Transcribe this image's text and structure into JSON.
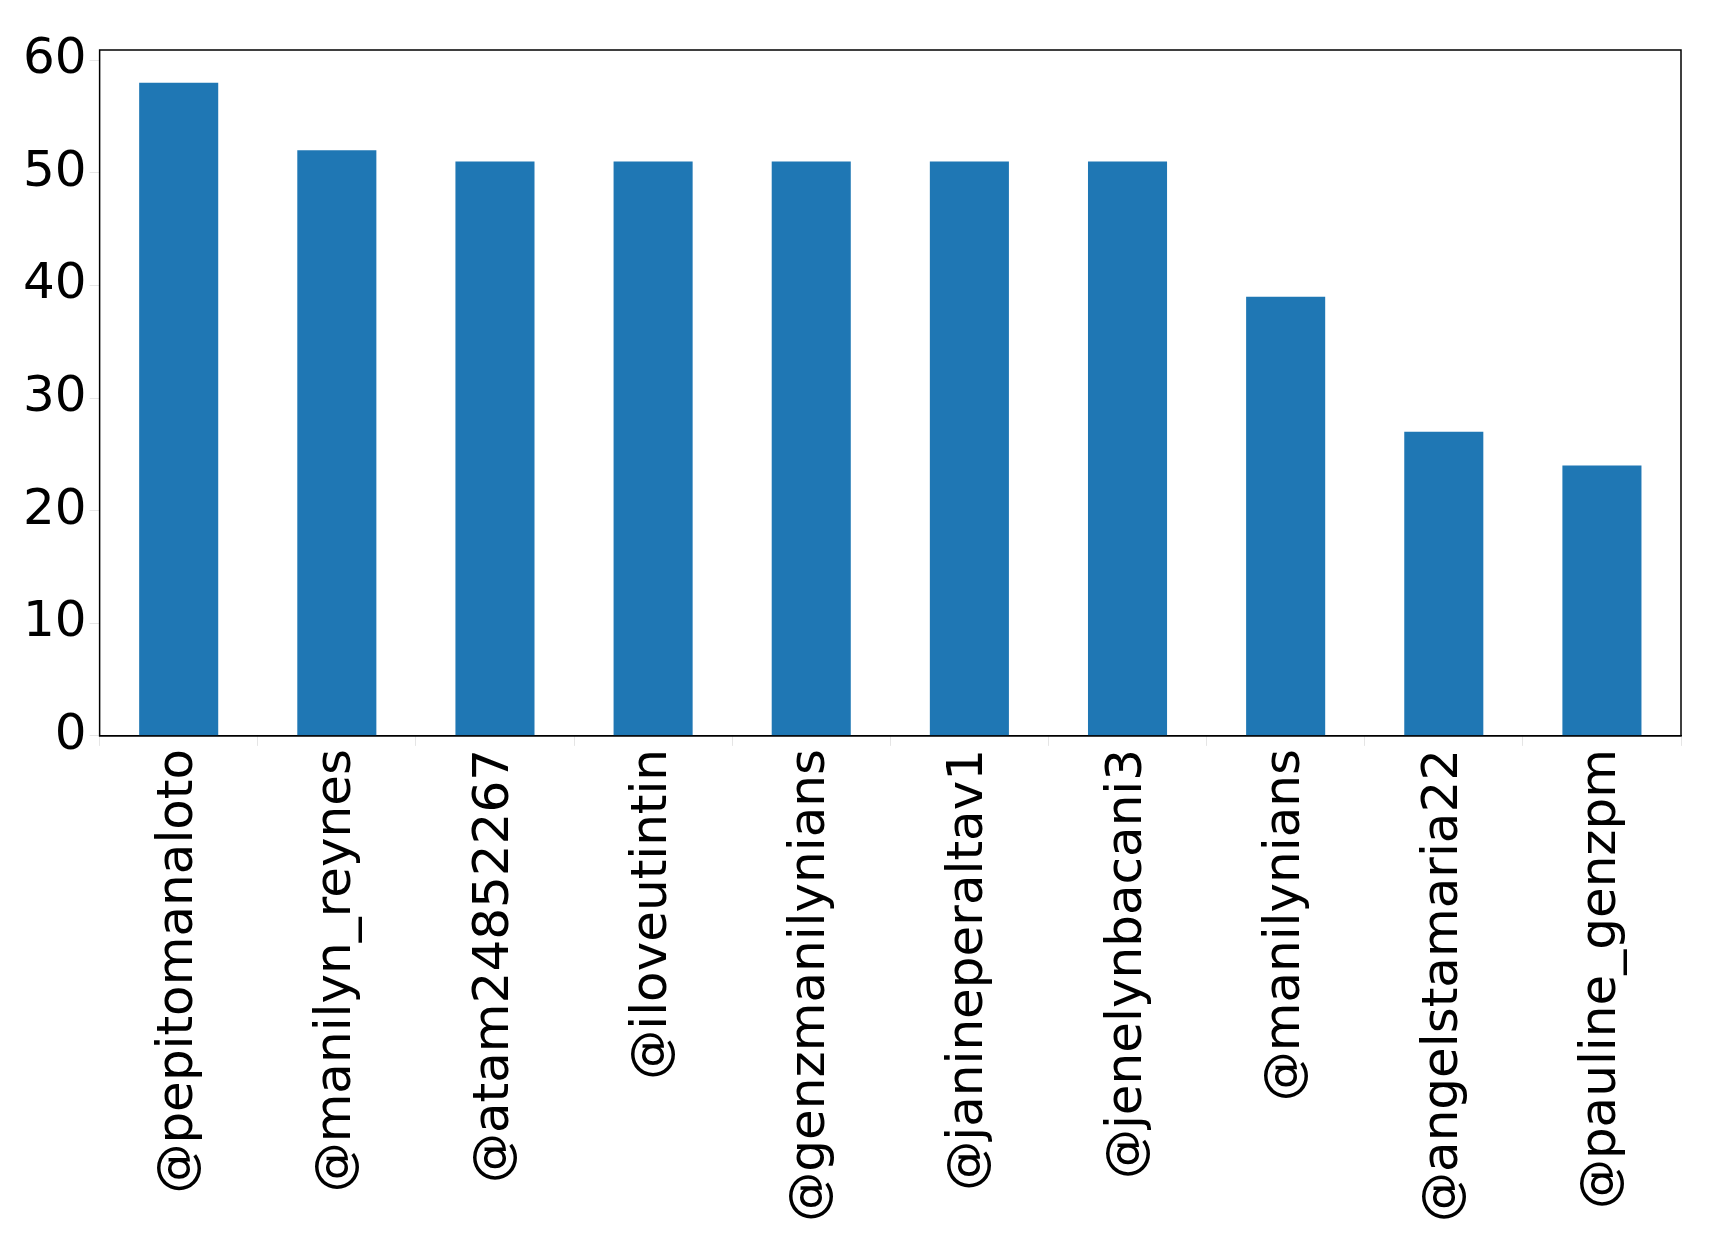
{
  "chart_data": {
    "type": "bar",
    "categories": [
      "@pepitomanaloto",
      "@manilyn_reynes",
      "@atam24852267",
      "@iloveutintin",
      "@genzmanilynians",
      "@janineperaltav1",
      "@jenelynbacani3",
      "@manilynians",
      "@angelstamaria22",
      "@pauline_genzpm"
    ],
    "values": [
      58,
      52,
      51,
      51,
      51,
      51,
      51,
      39,
      27,
      24
    ],
    "color": "#1f77b4",
    "ylim": [
      0,
      60.9
    ],
    "yticks": [
      0,
      10,
      20,
      30,
      40,
      50,
      60
    ],
    "grid": false,
    "legend": false
  }
}
